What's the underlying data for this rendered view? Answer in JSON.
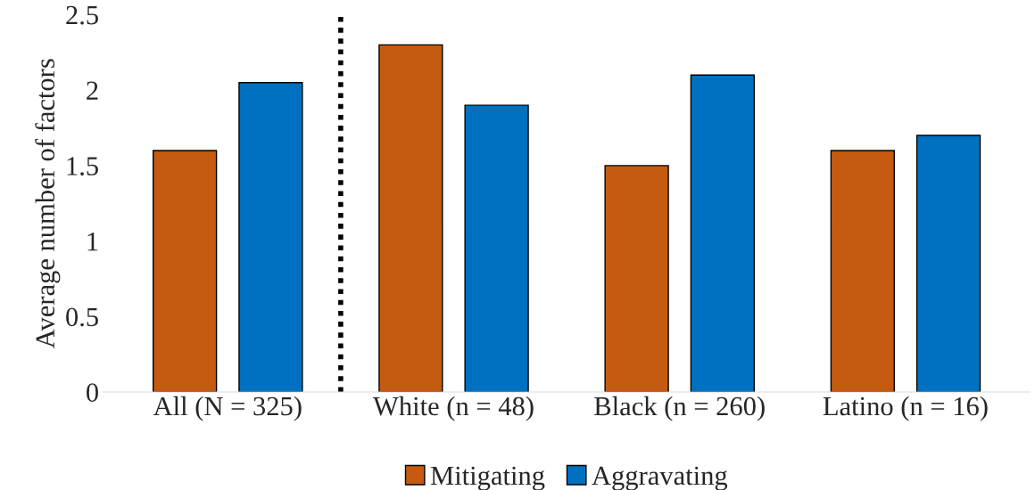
{
  "chart_data": {
    "type": "bar",
    "ylabel": "Average number of factors",
    "categories": [
      "All (N = 325)",
      "White (n = 48)",
      "Black (n = 260)",
      "Latino (n = 16)"
    ],
    "series": [
      {
        "name": "Mitigating",
        "color": "#c55a11",
        "values": [
          1.6,
          2.3,
          1.5,
          1.6
        ]
      },
      {
        "name": "Aggravating",
        "color": "#0070c0",
        "values": [
          2.05,
          1.9,
          2.1,
          1.7
        ]
      }
    ],
    "ylim": [
      0,
      2.5
    ],
    "yticks": [
      0,
      0.5,
      1,
      1.5,
      2,
      2.5
    ],
    "grid": false,
    "legend": "bottom"
  }
}
